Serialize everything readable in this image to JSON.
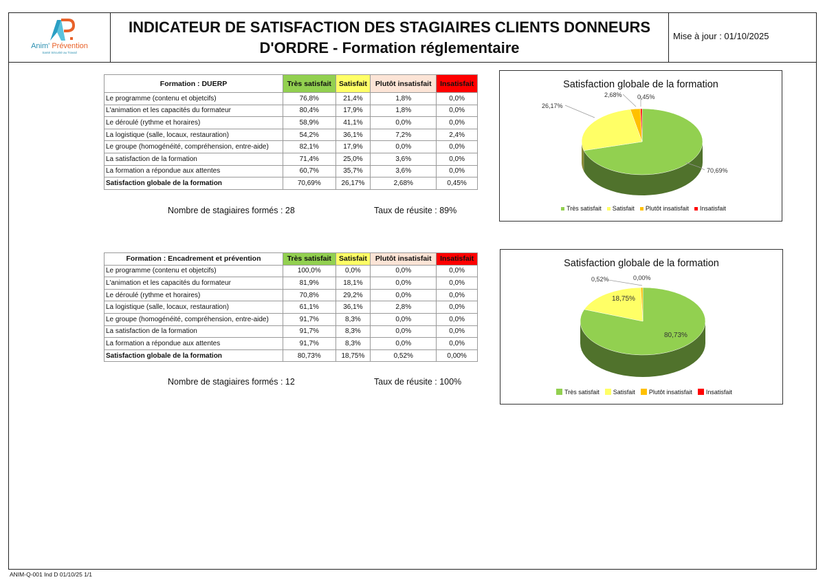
{
  "header": {
    "logo_text_1": "Anim'",
    "logo_text_2": "Prévention",
    "logo_subtitle": "Santé Sécurité au Travail",
    "title_line1": "INDICATEUR DE SATISFACTION DES STAGIAIRES CLIENTS DONNEURS",
    "title_line2": "D'ORDRE - Formation réglementaire",
    "update": "Mise à jour : 01/10/2025"
  },
  "columns": [
    "Très satisfait",
    "Satisfait",
    "Plutôt insatisfait",
    "Insatisfait"
  ],
  "colors": {
    "tres": "#92d050",
    "sat": "#ffff66",
    "plutot": "#ffc000",
    "insat": "#ff0000"
  },
  "sections": [
    {
      "formation": "Formation : DUERP",
      "rows": [
        [
          "Le programme (contenu et objetcifs)",
          "76,8%",
          "21,4%",
          "1,8%",
          "0,0%"
        ],
        [
          "L'animation et les capacités du formateur",
          "80,4%",
          "17,9%",
          "1,8%",
          "0,0%"
        ],
        [
          "Le déroulé (rythme et horaires)",
          "58,9%",
          "41,1%",
          "0,0%",
          "0,0%"
        ],
        [
          "La logistique (salle, locaux, restauration)",
          "54,2%",
          "36,1%",
          "7,2%",
          "2,4%"
        ],
        [
          "Le groupe (homogénéité, compréhension, entre-aide)",
          "82,1%",
          "17,9%",
          "0,0%",
          "0,0%"
        ],
        [
          "La satisfaction de la  formation",
          "71,4%",
          "25,0%",
          "3,6%",
          "0,0%"
        ],
        [
          "La formation a répondue aux attentes",
          "60,7%",
          "35,7%",
          "3,6%",
          "0,0%"
        ]
      ],
      "total": [
        "Satisfaction globale de la formation",
        "70,69%",
        "26,17%",
        "2,68%",
        "0,45%"
      ],
      "stagiaires": "Nombre de stagiaires formés : 28",
      "reussite": "Taux de réusite :  89%"
    },
    {
      "formation": "Formation : Encadrement et prévention",
      "rows": [
        [
          "Le programme (contenu et objetcifs)",
          "100,0%",
          "0,0%",
          "0,0%",
          "0,0%"
        ],
        [
          "L'animation et les capacités du formateur",
          "81,9%",
          "18,1%",
          "0,0%",
          "0,0%"
        ],
        [
          "Le déroulé (rythme et horaires)",
          "70,8%",
          "29,2%",
          "0,0%",
          "0,0%"
        ],
        [
          "La logistique (salle, locaux, restauration)",
          "61,1%",
          "36,1%",
          "2,8%",
          "0,0%"
        ],
        [
          "Le groupe (homogénéité, compréhension, entre-aide)",
          "91,7%",
          "8,3%",
          "0,0%",
          "0,0%"
        ],
        [
          "La satisfaction de la  formation",
          "91,7%",
          "8,3%",
          "0,0%",
          "0,0%"
        ],
        [
          "La formation a répondue aux attentes",
          "91,7%",
          "8,3%",
          "0,0%",
          "0,0%"
        ]
      ],
      "total": [
        "Satisfaction globale de la formation",
        "80,73%",
        "18,75%",
        "0,52%",
        "0,00%"
      ],
      "stagiaires": "Nombre de stagiaires formés : 12",
      "reussite": "Taux de réusite : 100%"
    }
  ],
  "chart_data": [
    {
      "type": "pie",
      "title": "Satisfaction globale de la formation",
      "categories": [
        "Très satisfait",
        "Satisfait",
        "Plutôt insatisfait",
        "Insatisfait"
      ],
      "values": [
        70.69,
        26.17,
        2.68,
        0.45
      ],
      "labels": [
        "70,69%",
        "26,17%",
        "2,68%",
        "0,45%"
      ],
      "legend": "bottom"
    },
    {
      "type": "pie",
      "title": "Satisfaction globale de la formation",
      "categories": [
        "Très satisfait",
        "Satisfait",
        "Plutôt insatisfait",
        "Insatisfait"
      ],
      "values": [
        80.73,
        18.75,
        0.52,
        0.0
      ],
      "labels": [
        "80,73%",
        "18,75%",
        "0,52%",
        "0,00%"
      ],
      "legend": "bottom"
    }
  ],
  "footer": "ANIM-Q-001 Ind D 01/10/25 1/1"
}
